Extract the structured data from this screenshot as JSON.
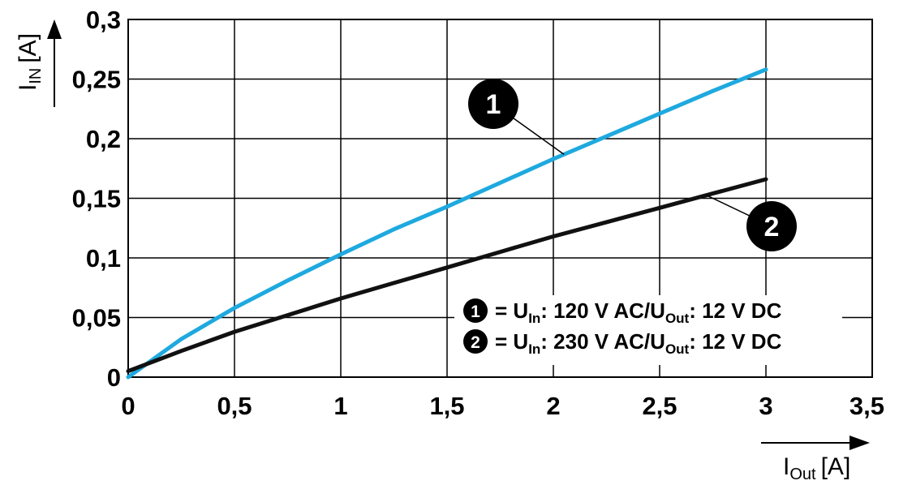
{
  "chart_data": {
    "type": "line",
    "xlabel": {
      "main": "I",
      "sub": "Out",
      "unit": "[A]"
    },
    "ylabel": {
      "main": "I",
      "sub": "IN",
      "unit": "[A]"
    },
    "xlim": [
      0,
      3.5
    ],
    "ylim": [
      0,
      0.3
    ],
    "x_ticks": [
      "0",
      "0,5",
      "1",
      "1,5",
      "2",
      "2,5",
      "3",
      "3,5"
    ],
    "y_ticks": [
      "0",
      "0,05",
      "0,1",
      "0,15",
      "0,2",
      "0,25",
      "0,3"
    ],
    "grid": true,
    "legend_placement": "bottom-right",
    "series": [
      {
        "marker": "1",
        "color": "#1ea9df",
        "legend": {
          "prefix": "= U",
          "sub1": "In",
          "mid": ": 120 V AC/U",
          "sub2": "Out",
          "suffix": ": 12 V DC"
        },
        "x": [
          0,
          0.25,
          0.5,
          0.75,
          1.0,
          1.25,
          1.5,
          1.75,
          2.0,
          2.25,
          2.5,
          2.75,
          3.0
        ],
        "y": [
          0.0,
          0.032,
          0.058,
          0.081,
          0.103,
          0.124,
          0.143,
          0.163,
          0.183,
          0.202,
          0.221,
          0.24,
          0.258
        ]
      },
      {
        "marker": "2",
        "color": "#111111",
        "legend": {
          "prefix": "= U",
          "sub1": "In",
          "mid": ": 230 V AC/U",
          "sub2": "Out",
          "suffix": ": 12 V DC"
        },
        "x": [
          0,
          0.25,
          0.5,
          0.75,
          1.0,
          1.25,
          1.5,
          1.75,
          2.0,
          2.25,
          2.5,
          2.75,
          3.0
        ],
        "y": [
          0.005,
          0.022,
          0.038,
          0.052,
          0.066,
          0.079,
          0.092,
          0.105,
          0.118,
          0.13,
          0.142,
          0.154,
          0.166
        ]
      }
    ]
  }
}
